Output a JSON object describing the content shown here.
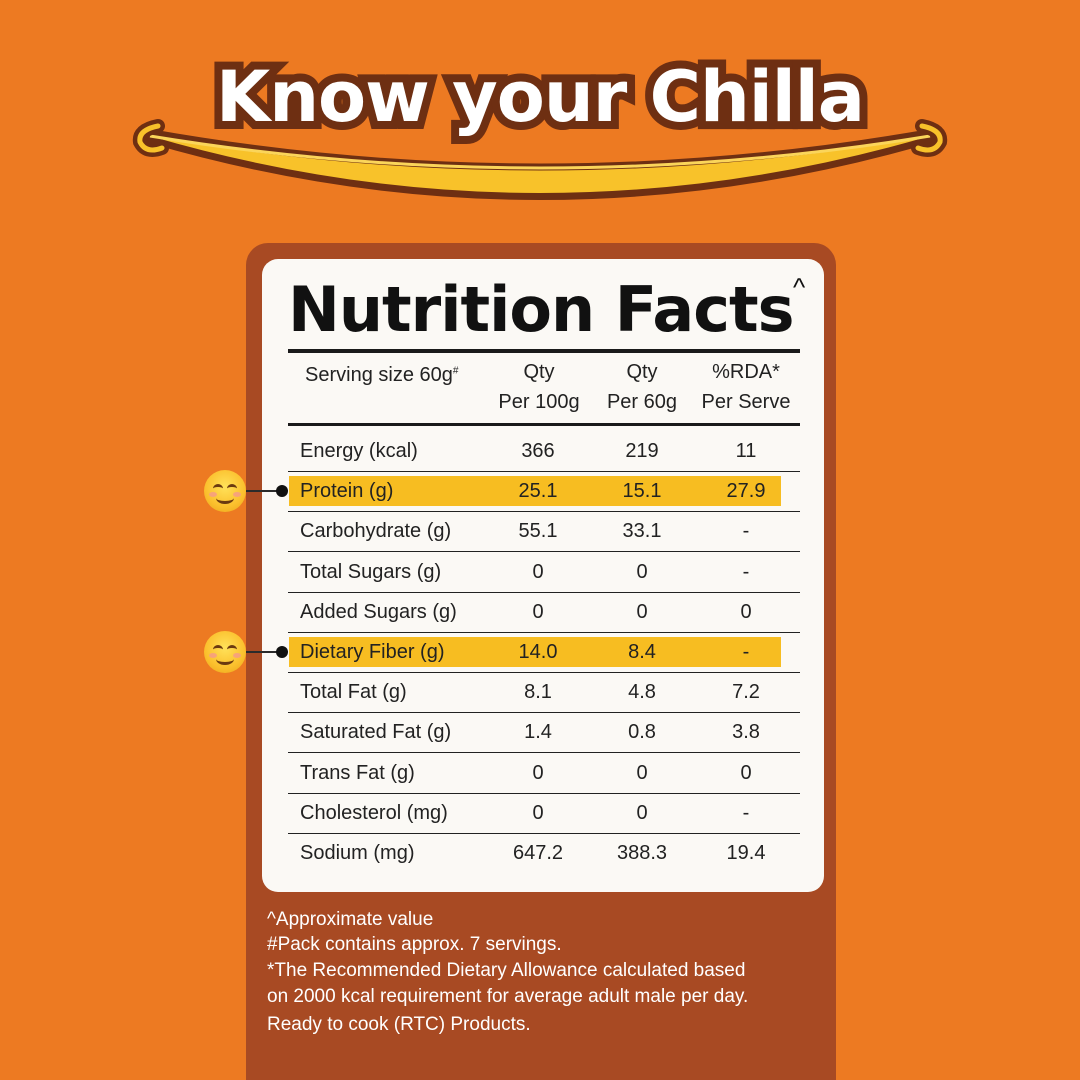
{
  "headline": "Know your Chilla",
  "panel": {
    "title": "Nutrition Facts",
    "title_mark": "^",
    "header": {
      "serving_label": "Serving size 60g",
      "serving_mark": "#",
      "col1_line1": "Qty",
      "col1_line2": "Per 100g",
      "col2_line1": "Qty",
      "col2_line2": "Per 60g",
      "col3_line1": "%RDA*",
      "col3_line2": "Per Serve"
    },
    "rows": [
      {
        "label": "Energy (kcal)",
        "per100": "366",
        "per60": "219",
        "rda": "11",
        "highlighted": false
      },
      {
        "label": "Protein (g)",
        "per100": "25.1",
        "per60": "15.1",
        "rda": "27.9",
        "highlighted": true
      },
      {
        "label": "Carbohydrate (g)",
        "per100": "55.1",
        "per60": "33.1",
        "rda": "-",
        "highlighted": false
      },
      {
        "label": "Total Sugars (g)",
        "per100": "0",
        "per60": "0",
        "rda": "-",
        "highlighted": false
      },
      {
        "label": "Added Sugars (g)",
        "per100": "0",
        "per60": "0",
        "rda": "0",
        "highlighted": false
      },
      {
        "label": "Dietary Fiber (g)",
        "per100": "14.0",
        "per60": "8.4",
        "rda": "-",
        "highlighted": true
      },
      {
        "label": "Total Fat (g)",
        "per100": "8.1",
        "per60": "4.8",
        "rda": "7.2",
        "highlighted": false
      },
      {
        "label": "Saturated Fat (g)",
        "per100": "1.4",
        "per60": "0.8",
        "rda": "3.8",
        "highlighted": false
      },
      {
        "label": "Trans Fat (g)",
        "per100": "0",
        "per60": "0",
        "rda": "0",
        "highlighted": false
      },
      {
        "label": "Cholesterol (mg)",
        "per100": "0",
        "per60": "0",
        "rda": "-",
        "highlighted": false
      },
      {
        "label": "Sodium (mg)",
        "per100": "647.2",
        "per60": "388.3",
        "rda": "19.4",
        "highlighted": false
      }
    ]
  },
  "footnotes": [
    "^Approximate value",
    "#Pack contains approx. 7 servings.",
    "*The Recommended Dietary Allowance calculated based",
    "on 2000 kcal requirement for average adult male per day.",
    "Ready to cook (RTC) Products."
  ],
  "markers": {
    "icon": "smiling-face-icon"
  },
  "colors": {
    "background": "#ED7A22",
    "panel": "#A84A23",
    "card": "#FBF9F5",
    "highlight": "#F7BD21",
    "headline_outline": "#6E2F12",
    "smile_curve": "#F8C22A"
  }
}
